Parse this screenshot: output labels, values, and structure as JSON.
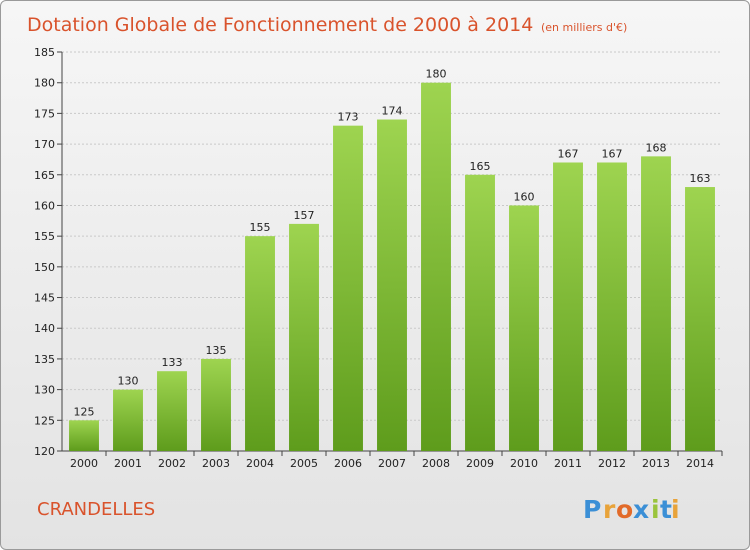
{
  "chart_data": {
    "type": "bar",
    "title": "Dotation Globale de Fonctionnement de 2000 à 2014",
    "subtitle": "(en milliers d'€)",
    "xlabel": "",
    "ylabel": "",
    "categories": [
      "2000",
      "2001",
      "2002",
      "2003",
      "2004",
      "2005",
      "2006",
      "2007",
      "2008",
      "2009",
      "2010",
      "2011",
      "2012",
      "2013",
      "2014"
    ],
    "values": [
      125,
      130,
      133,
      135,
      155,
      157,
      173,
      174,
      180,
      165,
      160,
      167,
      167,
      168,
      163
    ],
    "ylim": [
      120,
      185
    ],
    "yticks": [
      120,
      125,
      130,
      135,
      140,
      145,
      150,
      155,
      160,
      165,
      170,
      175,
      180,
      185
    ],
    "grid": true,
    "bar_color": "#7cb82f"
  },
  "commune": "CRANDELLES",
  "logo": {
    "letters": [
      "P",
      "r",
      "o",
      "x",
      "i",
      "t",
      "i"
    ],
    "colors": [
      "#3b8fd6",
      "#e8a33a",
      "#e26b2a",
      "#3b8fd6",
      "#9ac43c",
      "#3b8fd6",
      "#e8a33a"
    ]
  }
}
